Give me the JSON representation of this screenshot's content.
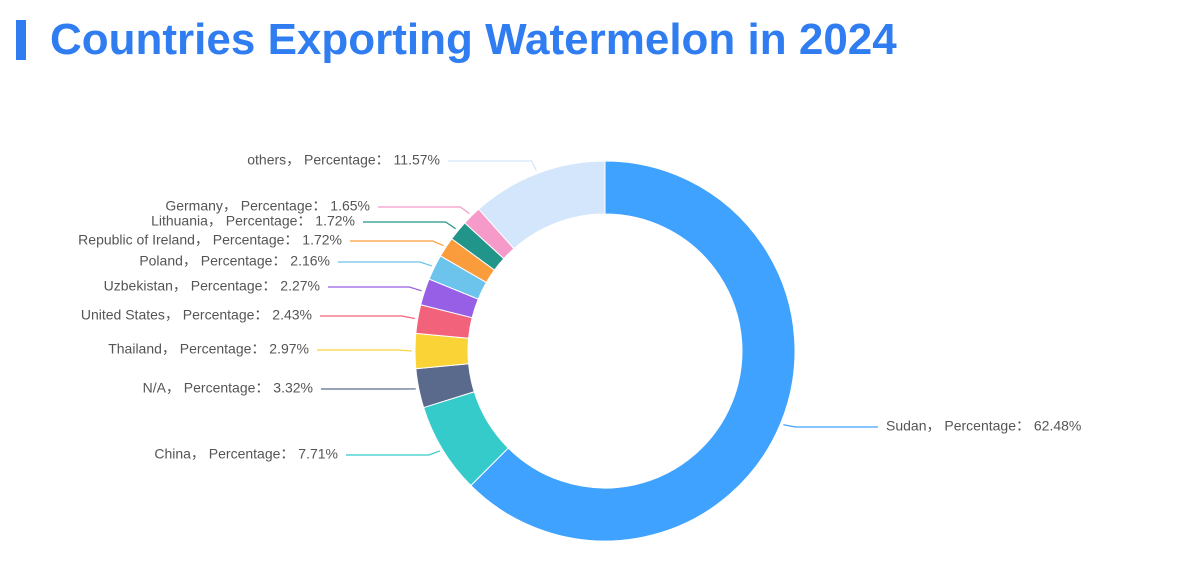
{
  "page": {
    "title": "Countries Exporting Watermelon in 2024",
    "accent_color": "#2f7df0"
  },
  "chart_data": {
    "type": "pie",
    "variant": "donut",
    "title": "Countries Exporting Watermelon in 2024",
    "label_template": "{name}， Percentage： {value}%",
    "slices": [
      {
        "name": "Sudan",
        "value": 62.48,
        "color": "#3fa2ff"
      },
      {
        "name": "China",
        "value": 7.71,
        "color": "#36cbcb"
      },
      {
        "name": "N/A",
        "value": 3.32,
        "color": "#5a6a8c"
      },
      {
        "name": "Thailand",
        "value": 2.97,
        "color": "#fad337"
      },
      {
        "name": "United States",
        "value": 2.43,
        "color": "#f2637b"
      },
      {
        "name": "Uzbekistan",
        "value": 2.27,
        "color": "#975fe5"
      },
      {
        "name": "Poland",
        "value": 2.16,
        "color": "#6cc3eb"
      },
      {
        "name": "Republic of Ireland",
        "value": 1.72,
        "color": "#fa9c3c"
      },
      {
        "name": "Lithuania",
        "value": 1.72,
        "color": "#22958a"
      },
      {
        "name": "Germany",
        "value": 1.65,
        "color": "#f59ac9"
      },
      {
        "name": "others",
        "value": 11.57,
        "color": "#d3e6fb"
      }
    ]
  }
}
